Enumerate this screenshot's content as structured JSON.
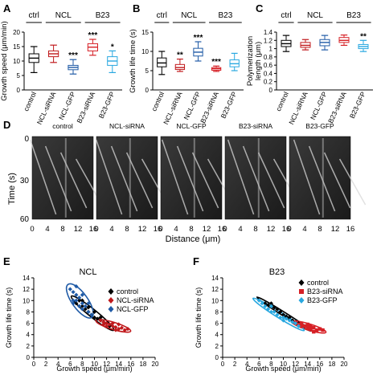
{
  "panel_letters": {
    "A": "A",
    "B": "B",
    "C": "C",
    "D": "D",
    "E": "E",
    "F": "F"
  },
  "group_labels": {
    "ctrl": "ctrl",
    "ncl": "NCL",
    "b23": "B23"
  },
  "chart_data": [
    {
      "panel": "A",
      "type": "box",
      "ylabel": "Growth speed (μm/min)",
      "ylim": [
        0,
        20
      ],
      "yticks": [
        0,
        5,
        10,
        15,
        20
      ],
      "categories": [
        "control",
        "NCL-siRNA",
        "NCL-GFP",
        "B23-siRNA",
        "B23-GFP"
      ],
      "colors": [
        "#000000",
        "#c0191c",
        "#1f5aa6",
        "#d62026",
        "#29a8e0"
      ],
      "boxes": [
        {
          "min": 6,
          "q1": 9.5,
          "median": 11,
          "q3": 12.5,
          "max": 15,
          "sig": ""
        },
        {
          "min": 9.5,
          "q1": 11.5,
          "median": 12.5,
          "q3": 13.5,
          "max": 15.5,
          "sig": ""
        },
        {
          "min": 5.5,
          "q1": 7,
          "median": 7.8,
          "q3": 8.5,
          "max": 10.5,
          "sig": "***"
        },
        {
          "min": 12,
          "q1": 13.5,
          "median": 14.8,
          "q3": 16,
          "max": 17.5,
          "sig": "***"
        },
        {
          "min": 6,
          "q1": 8.5,
          "median": 10,
          "q3": 11.5,
          "max": 13.5,
          "sig": "*"
        }
      ]
    },
    {
      "panel": "B",
      "type": "box",
      "ylabel": "Growth life time (s)",
      "ylim": [
        0,
        15
      ],
      "yticks": [
        0,
        5,
        10,
        15
      ],
      "categories": [
        "control",
        "NCL-siRNA",
        "NCL-GFP",
        "B23-siRNA",
        "B23-GFP"
      ],
      "colors": [
        "#000000",
        "#c0191c",
        "#1f5aa6",
        "#d62026",
        "#29a8e0"
      ],
      "boxes": [
        {
          "min": 4,
          "q1": 6,
          "median": 7,
          "q3": 8.3,
          "max": 10,
          "sig": ""
        },
        {
          "min": 4.8,
          "q1": 5.3,
          "median": 5.8,
          "q3": 6.6,
          "max": 8,
          "sig": "**"
        },
        {
          "min": 7.5,
          "q1": 8.8,
          "median": 9.8,
          "q3": 10.8,
          "max": 12.5,
          "sig": "***"
        },
        {
          "min": 4.8,
          "q1": 5.1,
          "median": 5.5,
          "q3": 5.8,
          "max": 6.2,
          "sig": "***"
        },
        {
          "min": 5,
          "q1": 6,
          "median": 6.8,
          "q3": 7.8,
          "max": 9.5,
          "sig": ""
        }
      ]
    },
    {
      "panel": "C",
      "type": "box",
      "ylabel": "Polymerization length (μm)",
      "ylim": [
        0,
        1.4
      ],
      "yticks": [
        0,
        0.2,
        0.4,
        0.6,
        0.8,
        1,
        1.2,
        1.4
      ],
      "categories": [
        "control",
        "NCL-siRNA",
        "NCL-GFP",
        "B23-siRNA",
        "B23-GFP"
      ],
      "colors": [
        "#000000",
        "#c0191c",
        "#1f5aa6",
        "#d62026",
        "#29a8e0"
      ],
      "boxes": [
        {
          "min": 0.93,
          "q1": 1.05,
          "median": 1.12,
          "q3": 1.2,
          "max": 1.32,
          "sig": ""
        },
        {
          "min": 0.97,
          "q1": 1.03,
          "median": 1.08,
          "q3": 1.15,
          "max": 1.22,
          "sig": ""
        },
        {
          "min": 0.97,
          "q1": 1.07,
          "median": 1.15,
          "q3": 1.22,
          "max": 1.32,
          "sig": ""
        },
        {
          "min": 1.08,
          "q1": 1.15,
          "median": 1.2,
          "q3": 1.27,
          "max": 1.33,
          "sig": ""
        },
        {
          "min": 0.93,
          "q1": 1.0,
          "median": 1.05,
          "q3": 1.1,
          "max": 1.2,
          "sig": "**"
        }
      ]
    },
    {
      "panel": "E",
      "type": "scatter",
      "title": "NCL",
      "xlabel": "Growth speed (μm/min)",
      "ylabel": "Growth life time (s)",
      "xlim": [
        0,
        20
      ],
      "ylim": [
        0,
        14
      ],
      "xticks": [
        0,
        2,
        4,
        6,
        8,
        10,
        12,
        14,
        16,
        18,
        20
      ],
      "yticks": [
        0,
        2,
        4,
        6,
        8,
        10,
        12,
        14
      ],
      "legend_position": "top-right",
      "series": [
        {
          "name": "control",
          "color": "#000000",
          "marker": "diamond",
          "points": [
            [
              7,
              9.5
            ],
            [
              7.5,
              10
            ],
            [
              8,
              9
            ],
            [
              8.5,
              8.5
            ],
            [
              9,
              8
            ],
            [
              9.5,
              7.5
            ],
            [
              10,
              7
            ],
            [
              10.5,
              6.8
            ],
            [
              11,
              6.5
            ],
            [
              11.5,
              6.2
            ],
            [
              12,
              6
            ],
            [
              8,
              10
            ],
            [
              9,
              8.8
            ],
            [
              10,
              8
            ],
            [
              11,
              7
            ],
            [
              12.5,
              5.5
            ]
          ]
        },
        {
          "name": "NCL-siRNA",
          "color": "#c0191c",
          "marker": "diamond",
          "points": [
            [
              11,
              6.5
            ],
            [
              11.5,
              6.2
            ],
            [
              12,
              6
            ],
            [
              12.5,
              5.8
            ],
            [
              13,
              5.5
            ],
            [
              13.5,
              5.3
            ],
            [
              14,
              5
            ],
            [
              14.5,
              5.2
            ],
            [
              15,
              4.8
            ],
            [
              12,
              5.5
            ],
            [
              13,
              6
            ],
            [
              14,
              5.8
            ],
            [
              11.5,
              5.8
            ],
            [
              13.5,
              4.8
            ],
            [
              15.5,
              5
            ]
          ]
        },
        {
          "name": "NCL-GFP",
          "color": "#1f5aa6",
          "marker": "diamond",
          "points": [
            [
              6,
              12
            ],
            [
              6.5,
              11.5
            ],
            [
              7,
              11
            ],
            [
              7,
              10
            ],
            [
              7.5,
              10.5
            ],
            [
              8,
              9.5
            ],
            [
              8.5,
              9
            ],
            [
              6.5,
              10
            ],
            [
              7.5,
              9
            ],
            [
              8,
              8.5
            ],
            [
              9,
              8
            ],
            [
              9,
              9.5
            ],
            [
              8,
              11
            ],
            [
              7,
              12.5
            ],
            [
              6.5,
              9.5
            ],
            [
              9.5,
              7.5
            ]
          ]
        }
      ]
    },
    {
      "panel": "F",
      "type": "scatter",
      "title": "B23",
      "xlabel": "Growth speed (μm/min)",
      "ylabel": "Growth life time (s)",
      "xlim": [
        0,
        20
      ],
      "ylim": [
        0,
        14
      ],
      "xticks": [
        0,
        2,
        4,
        6,
        8,
        10,
        12,
        14,
        16,
        18,
        20
      ],
      "yticks": [
        0,
        2,
        4,
        6,
        8,
        10,
        12,
        14
      ],
      "legend_position": "top-right",
      "series": [
        {
          "name": "control",
          "color": "#000000",
          "marker": "diamond",
          "points": [
            [
              7,
              9.5
            ],
            [
              7.5,
              9.2
            ],
            [
              8,
              9
            ],
            [
              8.5,
              8.8
            ],
            [
              9,
              8.5
            ],
            [
              9.5,
              8
            ],
            [
              10,
              7.5
            ],
            [
              10.5,
              7.2
            ],
            [
              11,
              7
            ],
            [
              11.5,
              6.5
            ],
            [
              12,
              6.2
            ],
            [
              12.5,
              6
            ],
            [
              13,
              5.8
            ],
            [
              13.5,
              5.5
            ],
            [
              8,
              9.5
            ]
          ]
        },
        {
          "name": "B23-siRNA",
          "color": "#d62026",
          "marker": "square",
          "points": [
            [
              12.5,
              5.8
            ],
            [
              13,
              5.5
            ],
            [
              13.5,
              5.5
            ],
            [
              14,
              5.2
            ],
            [
              14.5,
              5
            ],
            [
              15,
              5.2
            ],
            [
              15.5,
              4.8
            ],
            [
              16,
              5
            ],
            [
              14,
              5.8
            ],
            [
              13,
              6
            ],
            [
              15,
              4.5
            ],
            [
              16.5,
              4.8
            ],
            [
              14.5,
              5.5
            ],
            [
              12,
              6.2
            ]
          ]
        },
        {
          "name": "B23-GFP",
          "color": "#29a8e0",
          "marker": "diamond",
          "points": [
            [
              6,
              10
            ],
            [
              6.5,
              9.5
            ],
            [
              7,
              9
            ],
            [
              7.5,
              8.5
            ],
            [
              8,
              8
            ],
            [
              8.5,
              8
            ],
            [
              9,
              7.5
            ],
            [
              9.5,
              7
            ],
            [
              10,
              7
            ],
            [
              10.5,
              6.8
            ],
            [
              11,
              6.5
            ],
            [
              11.5,
              6.2
            ],
            [
              12,
              6
            ],
            [
              8,
              9
            ],
            [
              10,
              6.5
            ],
            [
              12.5,
              5.5
            ]
          ]
        }
      ]
    }
  ],
  "kymograph": {
    "panel_letter": "D",
    "ylabel": "Time (s)",
    "xlabel": "Distance (μm)",
    "y_ticks": [
      "0",
      "30",
      "60"
    ],
    "x_ticks": [
      "0",
      "4",
      "8",
      "12",
      "16"
    ],
    "titles": [
      "control",
      "NCL-siRNA",
      "NCL-GFP",
      "B23-siRNA",
      "B23-GFP"
    ]
  }
}
